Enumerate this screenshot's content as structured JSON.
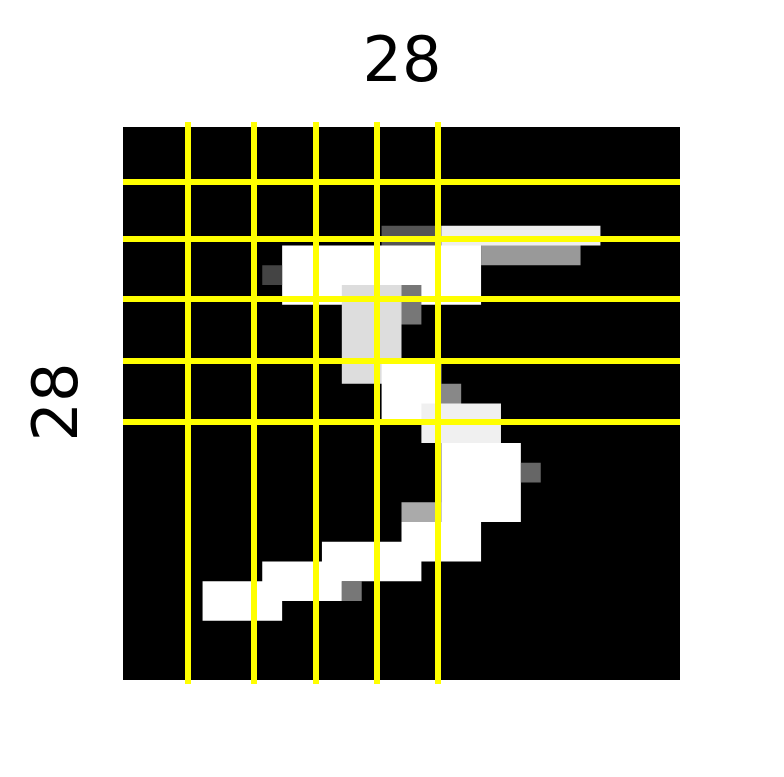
{
  "labels": {
    "width": "28",
    "height": "28"
  }
}
